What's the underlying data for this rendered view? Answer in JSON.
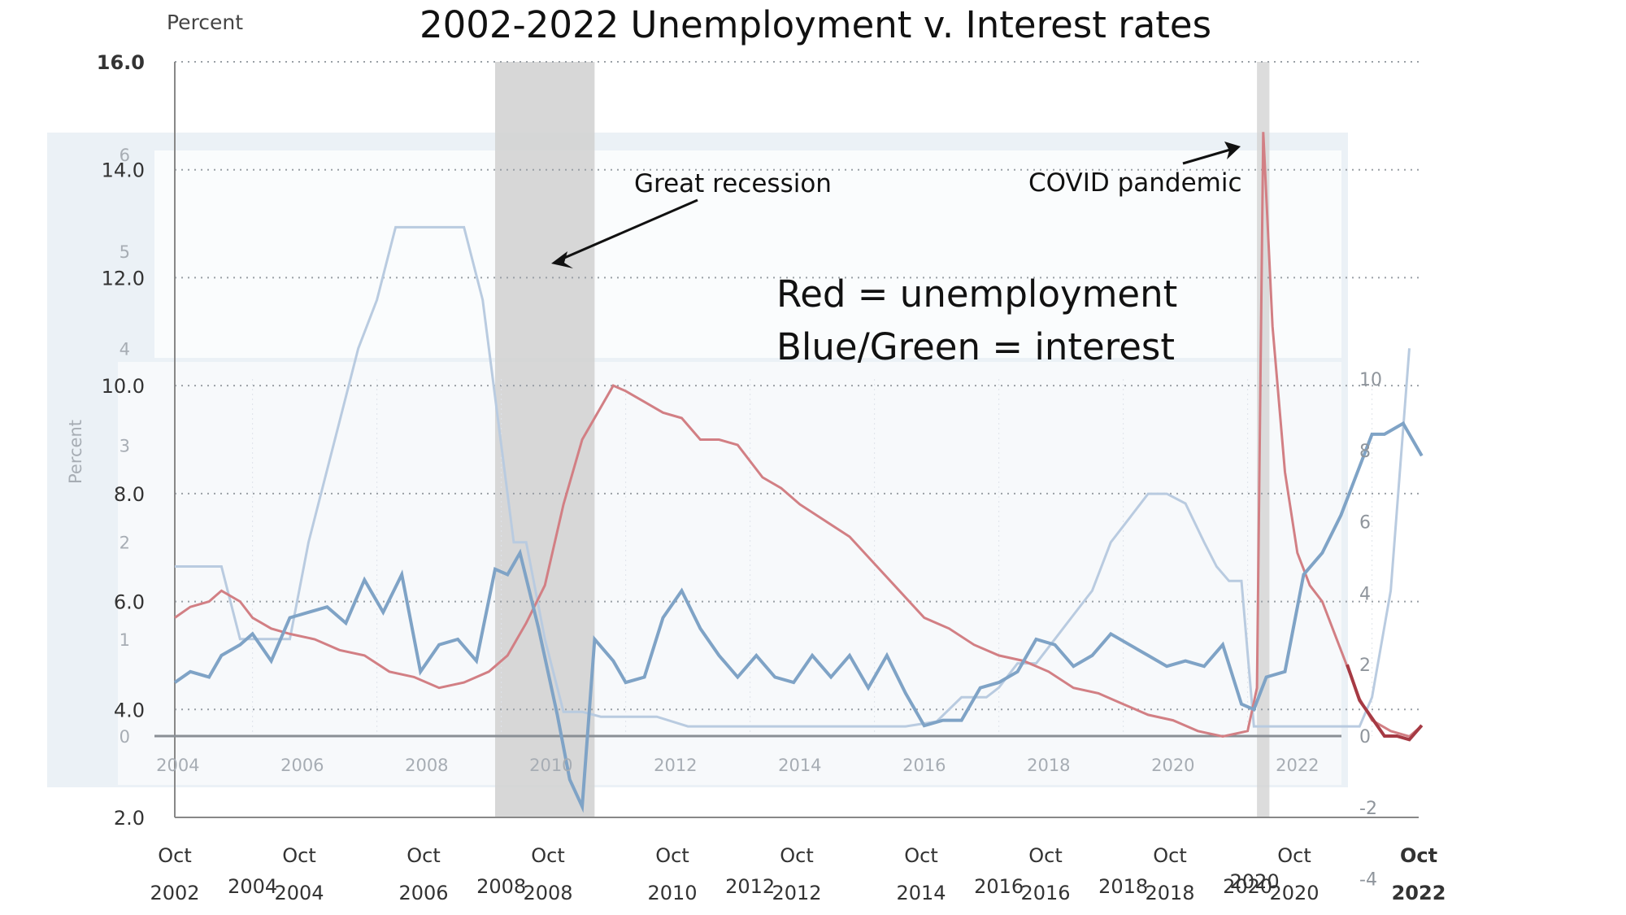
{
  "colors": {
    "unemployment": "#d27f84",
    "unemployment_dark": "#a63a44",
    "interest_dark": "#7fa3c6",
    "interest_light": "#b9cbe0",
    "recession": "#d3d3d3",
    "overlay": "#e7edf3"
  },
  "chart_data": [
    {
      "type": "line",
      "role": "outer",
      "title": "2002-2022 Unemployment v. Interest rates",
      "ylabel": "Percent",
      "ylim": [
        2.0,
        16.0
      ],
      "yticks": [
        "16.0",
        "14.0",
        "12.0",
        "10.0",
        "8.0",
        "6.0",
        "4.0",
        "2.0"
      ],
      "xticks": [
        {
          "month": "Oct",
          "year": "2002"
        },
        {
          "month": "Oct",
          "year": "2004"
        },
        {
          "month": "Oct",
          "year": "2006"
        },
        {
          "month": "Oct",
          "year": "2008"
        },
        {
          "month": "Oct",
          "year": "2010"
        },
        {
          "month": "Oct",
          "year": "2012"
        },
        {
          "month": "Oct",
          "year": "2014"
        },
        {
          "month": "Oct",
          "year": "2016"
        },
        {
          "month": "Oct",
          "year": "2018"
        },
        {
          "month": "Oct",
          "year": "2020"
        },
        {
          "month": "Oct",
          "year": "2022"
        }
      ],
      "xticks_secondary": [
        "2004",
        "2008",
        "2012",
        "2016",
        "2018",
        "2020"
      ],
      "xticks_secondary_alt": [
        "2020"
      ],
      "xticks_inner": [
        "2004",
        "2006",
        "2008",
        "2010",
        "2012",
        "2014",
        "2016",
        "2018",
        "2020",
        "2022"
      ],
      "shaded_periods": [
        {
          "label": "Great recession",
          "from": 2007.9,
          "to": 2009.5
        },
        {
          "label": "COVID pandemic",
          "from": 2020.15,
          "to": 2020.35
        }
      ],
      "series": [
        {
          "name": "Red = unemployment",
          "x": [
            2002.75,
            2003.0,
            2003.3,
            2003.5,
            2003.8,
            2004.0,
            2004.3,
            2004.6,
            2005.0,
            2005.4,
            2005.8,
            2006.2,
            2006.6,
            2007.0,
            2007.4,
            2007.8,
            2008.1,
            2008.4,
            2008.7,
            2009.0,
            2009.3,
            2009.6,
            2009.8,
            2010.0,
            2010.3,
            2010.6,
            2010.9,
            2011.2,
            2011.5,
            2011.8,
            2012.2,
            2012.5,
            2012.8,
            2013.2,
            2013.6,
            2014.0,
            2014.4,
            2014.8,
            2015.2,
            2015.6,
            2016.0,
            2016.4,
            2016.8,
            2017.2,
            2017.6,
            2018.0,
            2018.4,
            2018.8,
            2019.2,
            2019.6,
            2020.0,
            2020.15,
            2020.25,
            2020.4,
            2020.6,
            2020.8,
            2021.0,
            2021.2,
            2021.4,
            2021.6,
            2021.8,
            2022.0,
            2022.3,
            2022.6,
            2022.8
          ],
          "y": [
            5.7,
            5.9,
            6.0,
            6.2,
            6.0,
            5.7,
            5.5,
            5.4,
            5.3,
            5.1,
            5.0,
            4.7,
            4.6,
            4.4,
            4.5,
            4.7,
            5.0,
            5.6,
            6.3,
            7.8,
            9.0,
            9.6,
            10.0,
            9.9,
            9.7,
            9.5,
            9.4,
            9.0,
            9.0,
            8.9,
            8.3,
            8.1,
            7.8,
            7.5,
            7.2,
            6.7,
            6.2,
            5.7,
            5.5,
            5.2,
            5.0,
            4.9,
            4.7,
            4.4,
            4.3,
            4.1,
            3.9,
            3.8,
            3.6,
            3.5,
            3.6,
            4.4,
            14.7,
            11.1,
            8.4,
            6.9,
            6.3,
            6.0,
            5.4,
            4.8,
            4.2,
            3.8,
            3.6,
            3.5,
            3.7
          ]
        },
        {
          "name": "Blue/Green = interest",
          "x": [
            2002.75,
            2003.0,
            2003.3,
            2003.5,
            2003.8,
            2004.0,
            2004.3,
            2004.6,
            2004.9,
            2005.2,
            2005.5,
            2005.8,
            2006.1,
            2006.4,
            2006.7,
            2007.0,
            2007.3,
            2007.6,
            2007.9,
            2008.1,
            2008.3,
            2008.6,
            2008.9,
            2009.1,
            2009.3,
            2009.5,
            2009.8,
            2010.0,
            2010.3,
            2010.6,
            2010.9,
            2011.2,
            2011.5,
            2011.8,
            2012.1,
            2012.4,
            2012.7,
            2013.0,
            2013.3,
            2013.6,
            2013.9,
            2014.2,
            2014.5,
            2014.8,
            2015.1,
            2015.4,
            2015.7,
            2016.0,
            2016.3,
            2016.6,
            2016.9,
            2017.2,
            2017.5,
            2017.8,
            2018.1,
            2018.4,
            2018.7,
            2019.0,
            2019.3,
            2019.6,
            2019.9,
            2020.1,
            2020.3,
            2020.6,
            2020.9,
            2021.2,
            2021.5,
            2021.8,
            2022.0,
            2022.2,
            2022.5,
            2022.8
          ],
          "y": [
            4.5,
            4.7,
            4.6,
            5.0,
            5.2,
            5.4,
            4.9,
            5.7,
            5.8,
            5.9,
            5.6,
            6.4,
            5.8,
            6.5,
            4.7,
            5.2,
            5.3,
            4.9,
            6.6,
            6.5,
            6.9,
            5.5,
            3.9,
            2.7,
            2.2,
            5.3,
            4.9,
            4.5,
            4.6,
            5.7,
            6.2,
            5.5,
            5.0,
            4.6,
            5.0,
            4.6,
            4.5,
            5.0,
            4.6,
            5.0,
            4.4,
            5.0,
            4.3,
            3.7,
            3.8,
            3.8,
            4.4,
            4.5,
            4.7,
            5.3,
            5.2,
            4.8,
            5.0,
            5.4,
            5.2,
            5.0,
            4.8,
            4.9,
            4.8,
            5.2,
            4.1,
            4.0,
            4.6,
            4.7,
            6.5,
            6.9,
            7.6,
            8.5,
            9.1,
            9.1,
            9.3,
            8.7
          ]
        }
      ]
    },
    {
      "type": "line",
      "role": "middle-faded",
      "ylim": [
        -0.2,
        6.0
      ],
      "yticks": [
        "6",
        "5",
        "4",
        "3",
        "2",
        "1",
        "0"
      ],
      "series": [
        {
          "name": "",
          "x": [
            2002.75,
            2003.5,
            2003.8,
            2004.2,
            2004.6,
            2004.9,
            2005.3,
            2005.7,
            2006.0,
            2006.3,
            2006.6,
            2007.0,
            2007.4,
            2007.7,
            2008.0,
            2008.2,
            2008.4,
            2008.7,
            2009.0,
            2009.3,
            2009.6,
            2010.0,
            2010.5,
            2011.0,
            2011.5,
            2012.0,
            2012.5,
            2013.0,
            2013.5,
            2014.0,
            2014.5,
            2015.0,
            2015.4,
            2015.8,
            2016.0,
            2016.3,
            2016.6,
            2016.9,
            2017.2,
            2017.5,
            2017.8,
            2018.1,
            2018.4,
            2018.7,
            2019.0,
            2019.3,
            2019.5,
            2019.7,
            2019.9,
            2020.1,
            2020.4,
            2020.8,
            2021.2,
            2021.5,
            2021.8,
            2022.0,
            2022.3,
            2022.6
          ],
          "y": [
            1.75,
            1.75,
            1.0,
            1.0,
            1.0,
            2.0,
            3.0,
            4.0,
            4.5,
            5.25,
            5.25,
            5.25,
            5.25,
            4.5,
            3.0,
            2.0,
            2.0,
            1.0,
            0.25,
            0.25,
            0.2,
            0.2,
            0.2,
            0.1,
            0.1,
            0.1,
            0.1,
            0.1,
            0.1,
            0.1,
            0.1,
            0.15,
            0.4,
            0.4,
            0.5,
            0.75,
            0.75,
            1.0,
            1.25,
            1.5,
            2.0,
            2.25,
            2.5,
            2.5,
            2.4,
            2.0,
            1.75,
            1.6,
            1.6,
            0.1,
            0.1,
            0.1,
            0.1,
            0.1,
            0.1,
            0.4,
            1.5,
            4.0
          ]
        }
      ]
    },
    {
      "type": "line",
      "role": "inner-right-axis",
      "ylim": [
        -2,
        10
      ],
      "yticks_right": [
        "10",
        "8",
        "6",
        "4",
        "2",
        "0",
        "-2",
        "-4"
      ],
      "series": [
        {
          "name": "",
          "x": [
            2021.6,
            2021.8,
            2022.0,
            2022.2,
            2022.4,
            2022.6,
            2022.8
          ],
          "y": [
            2.0,
            1.0,
            0.5,
            0.0,
            0.0,
            -0.1,
            0.3
          ]
        }
      ]
    }
  ],
  "annotations": {
    "recession_label": "Great recession",
    "covid_label": "COVID pandemic",
    "legend_line1": "Red = unemployment",
    "legend_line2": "Blue/Green = interest"
  },
  "labels": {
    "top_axis": "Percent",
    "side_axis": "Percent"
  }
}
